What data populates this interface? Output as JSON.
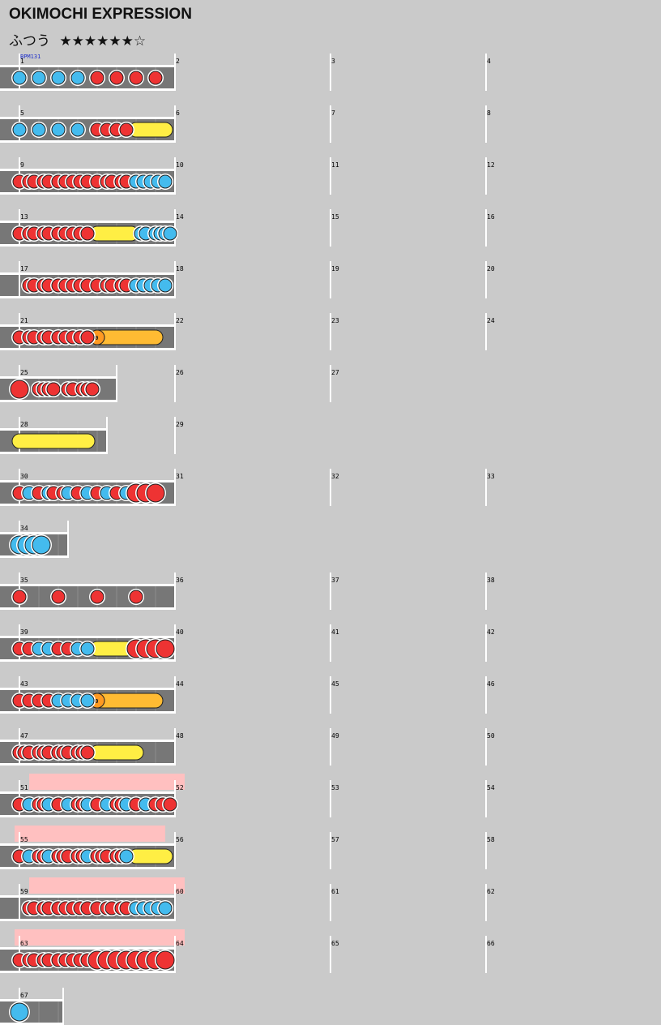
{
  "title": "OKIMOCHI EXPRESSION",
  "difficulty": "ふつう",
  "stars": "★★★★★★☆",
  "bpm_label": "BPM131",
  "balloon_label": "10",
  "colors": {
    "don": "#ee3333",
    "ka": "#44bbee",
    "roll": "#ffee44",
    "balloon": "#ffbb33",
    "gogo": "#ffc0c0",
    "lane": "#777777"
  },
  "rows": [
    {
      "m": [
        1,
        2,
        3,
        4
      ],
      "len": 4,
      "notes": [
        [
          0,
          "k"
        ],
        [
          0.5,
          "k"
        ],
        [
          1,
          "k"
        ],
        [
          1.5,
          "k"
        ],
        [
          2,
          "d"
        ],
        [
          2.5,
          "d"
        ],
        [
          3,
          "d"
        ],
        [
          3.5,
          "d"
        ]
      ]
    },
    {
      "m": [
        5,
        6,
        7,
        8
      ],
      "len": 4,
      "notes": [
        [
          0,
          "k"
        ],
        [
          0.5,
          "k"
        ],
        [
          1,
          "k"
        ],
        [
          1.5,
          "k"
        ],
        [
          2,
          "d"
        ],
        [
          2.25,
          "d"
        ],
        [
          2.5,
          "d"
        ],
        [
          2.75,
          "d"
        ]
      ],
      "rolls": [
        [
          3,
          3.75,
          "roll"
        ]
      ]
    },
    {
      "m": [
        9,
        10,
        11,
        12
      ],
      "len": 4,
      "notes": [
        [
          0,
          "d"
        ],
        [
          0.25,
          "d"
        ],
        [
          0.375,
          "d"
        ],
        [
          0.625,
          "d"
        ],
        [
          0.75,
          "d"
        ],
        [
          1,
          "d"
        ],
        [
          1.1875,
          "d"
        ],
        [
          1.375,
          "d"
        ],
        [
          1.5625,
          "d"
        ],
        [
          1.75,
          "d"
        ],
        [
          2,
          "d"
        ],
        [
          2.25,
          "d"
        ],
        [
          2.375,
          "d"
        ],
        [
          2.625,
          "d"
        ],
        [
          2.75,
          "d"
        ],
        [
          3,
          "k"
        ],
        [
          3.1875,
          "k"
        ],
        [
          3.375,
          "k"
        ],
        [
          3.5625,
          "k"
        ],
        [
          3.75,
          "k"
        ]
      ]
    },
    {
      "m": [
        13,
        14,
        15,
        16
      ],
      "len": 4,
      "notes": [
        [
          0,
          "d"
        ],
        [
          0.25,
          "d"
        ],
        [
          0.375,
          "d"
        ],
        [
          0.625,
          "d"
        ],
        [
          0.75,
          "d"
        ],
        [
          1,
          "d"
        ],
        [
          1.1875,
          "d"
        ],
        [
          1.375,
          "d"
        ],
        [
          1.5625,
          "d"
        ],
        [
          1.75,
          "d"
        ],
        [
          3.125,
          "k"
        ],
        [
          3.25,
          "k"
        ],
        [
          3.5,
          "k"
        ],
        [
          3.625,
          "k"
        ],
        [
          3.75,
          "k"
        ],
        [
          3.875,
          "k"
        ]
      ],
      "rolls": [
        [
          2,
          2.875,
          "roll"
        ]
      ]
    },
    {
      "m": [
        17,
        18,
        19,
        20
      ],
      "len": 4,
      "notes": [
        [
          0.25,
          "d"
        ],
        [
          0.375,
          "d"
        ],
        [
          0.625,
          "d"
        ],
        [
          0.75,
          "d"
        ],
        [
          1,
          "d"
        ],
        [
          1.1875,
          "d"
        ],
        [
          1.375,
          "d"
        ],
        [
          1.5625,
          "d"
        ],
        [
          1.75,
          "d"
        ],
        [
          2,
          "d"
        ],
        [
          2.25,
          "d"
        ],
        [
          2.375,
          "d"
        ],
        [
          2.625,
          "d"
        ],
        [
          2.75,
          "d"
        ],
        [
          3,
          "k"
        ],
        [
          3.1875,
          "k"
        ],
        [
          3.375,
          "k"
        ],
        [
          3.5625,
          "k"
        ],
        [
          3.75,
          "k"
        ]
      ]
    },
    {
      "m": [
        21,
        22,
        23,
        24
      ],
      "len": 4,
      "notes": [
        [
          0,
          "d"
        ],
        [
          0.25,
          "d"
        ],
        [
          0.375,
          "d"
        ],
        [
          0.625,
          "d"
        ],
        [
          0.75,
          "d"
        ],
        [
          1,
          "d"
        ],
        [
          1.1875,
          "d"
        ],
        [
          1.375,
          "d"
        ],
        [
          1.5625,
          "d"
        ],
        [
          1.75,
          "d"
        ]
      ],
      "rolls": [
        [
          2,
          3.5,
          "balloon"
        ]
      ]
    },
    {
      "m": [
        25,
        26,
        27
      ],
      "len": 2.5,
      "notes": [
        [
          0,
          "D"
        ],
        [
          0.5,
          "d"
        ],
        [
          0.625,
          "d"
        ],
        [
          0.75,
          "d"
        ],
        [
          0.875,
          "d"
        ],
        [
          1.25,
          "d"
        ],
        [
          1.375,
          "d"
        ],
        [
          1.625,
          "d"
        ],
        [
          1.75,
          "d"
        ],
        [
          1.875,
          "d"
        ]
      ]
    },
    {
      "m": [
        28,
        29
      ],
      "len": 2.25,
      "notes": [],
      "rolls": [
        [
          0,
          1.75,
          "roll"
        ]
      ]
    },
    {
      "m": [
        30,
        31,
        32,
        33
      ],
      "len": 4,
      "notes": [
        [
          0,
          "d"
        ],
        [
          0.25,
          "k"
        ],
        [
          0.5,
          "d"
        ],
        [
          0.75,
          "k"
        ],
        [
          0.875,
          "d"
        ],
        [
          1.125,
          "d"
        ],
        [
          1.25,
          "k"
        ],
        [
          1.5,
          "d"
        ],
        [
          1.75,
          "k"
        ],
        [
          2,
          "d"
        ],
        [
          2.25,
          "k"
        ],
        [
          2.5,
          "d"
        ],
        [
          2.75,
          "k"
        ],
        [
          3,
          "D"
        ],
        [
          3.25,
          "D"
        ],
        [
          3.5,
          "D"
        ]
      ]
    },
    {
      "m": [
        34
      ],
      "len": 1.25,
      "notes": [
        [
          0,
          "K"
        ],
        [
          0.1875,
          "K"
        ],
        [
          0.375,
          "K"
        ],
        [
          0.5625,
          "K"
        ]
      ]
    },
    {
      "m": [
        35,
        36,
        37,
        38
      ],
      "len": 4,
      "notes": [
        [
          0,
          "d"
        ],
        [
          1,
          "d"
        ],
        [
          2,
          "d"
        ],
        [
          3,
          "d"
        ]
      ]
    },
    {
      "m": [
        39,
        40,
        41,
        42
      ],
      "len": 4,
      "notes": [
        [
          0,
          "d"
        ],
        [
          0.25,
          "d"
        ],
        [
          0.5,
          "k"
        ],
        [
          0.75,
          "k"
        ],
        [
          1,
          "d"
        ],
        [
          1.25,
          "d"
        ],
        [
          1.5,
          "k"
        ],
        [
          1.75,
          "k"
        ],
        [
          3,
          "D"
        ],
        [
          3.25,
          "D"
        ],
        [
          3.5,
          "D"
        ],
        [
          3.75,
          "D"
        ]
      ],
      "rolls": [
        [
          2,
          2.75,
          "roll"
        ]
      ]
    },
    {
      "m": [
        43,
        44,
        45,
        46
      ],
      "len": 4,
      "notes": [
        [
          0,
          "d"
        ],
        [
          0.25,
          "d"
        ],
        [
          0.5,
          "d"
        ],
        [
          0.75,
          "d"
        ],
        [
          1,
          "k"
        ],
        [
          1.25,
          "k"
        ],
        [
          1.5,
          "k"
        ],
        [
          1.75,
          "k"
        ]
      ],
      "rolls": [
        [
          2,
          3.5,
          "balloon"
        ]
      ]
    },
    {
      "m": [
        47,
        48,
        49,
        50
      ],
      "len": 4,
      "notes": [
        [
          0,
          "d"
        ],
        [
          0.125,
          "d"
        ],
        [
          0.25,
          "d"
        ],
        [
          0.5,
          "d"
        ],
        [
          0.625,
          "d"
        ],
        [
          0.75,
          "d"
        ],
        [
          1,
          "d"
        ],
        [
          1.125,
          "d"
        ],
        [
          1.25,
          "d"
        ],
        [
          1.5,
          "d"
        ],
        [
          1.625,
          "d"
        ],
        [
          1.75,
          "d"
        ]
      ],
      "rolls": [
        [
          2,
          3,
          "roll"
        ]
      ]
    },
    {
      "m": [
        51,
        52,
        53,
        54
      ],
      "len": 4,
      "gogo": [
        0.25,
        4.25
      ],
      "notes": [
        [
          0,
          "d"
        ],
        [
          0.25,
          "k"
        ],
        [
          0.5,
          "d"
        ],
        [
          0.625,
          "d"
        ],
        [
          0.75,
          "k"
        ],
        [
          1,
          "d"
        ],
        [
          1.25,
          "k"
        ],
        [
          1.5,
          "d"
        ],
        [
          1.625,
          "d"
        ],
        [
          1.75,
          "k"
        ],
        [
          2,
          "d"
        ],
        [
          2.25,
          "k"
        ],
        [
          2.5,
          "d"
        ],
        [
          2.625,
          "d"
        ],
        [
          2.75,
          "k"
        ],
        [
          3,
          "d"
        ],
        [
          3.25,
          "k"
        ],
        [
          3.5,
          "d"
        ],
        [
          3.6875,
          "d"
        ],
        [
          3.875,
          "d"
        ]
      ]
    },
    {
      "m": [
        55,
        56,
        57,
        58
      ],
      "len": 4,
      "gogo": [
        -0.125,
        3.75
      ],
      "notes": [
        [
          0,
          "d"
        ],
        [
          0.25,
          "k"
        ],
        [
          0.5,
          "d"
        ],
        [
          0.625,
          "d"
        ],
        [
          0.75,
          "k"
        ],
        [
          1,
          "d"
        ],
        [
          1.125,
          "d"
        ],
        [
          1.25,
          "d"
        ],
        [
          1.5,
          "d"
        ],
        [
          1.625,
          "d"
        ],
        [
          1.75,
          "k"
        ],
        [
          2,
          "d"
        ],
        [
          2.125,
          "d"
        ],
        [
          2.25,
          "d"
        ],
        [
          2.5,
          "d"
        ],
        [
          2.625,
          "d"
        ],
        [
          2.75,
          "k"
        ]
      ],
      "rolls": [
        [
          3,
          3.75,
          "roll"
        ]
      ]
    },
    {
      "m": [
        59,
        60,
        61,
        62
      ],
      "len": 4,
      "gogo": [
        0.25,
        4.25
      ],
      "notes": [
        [
          0.25,
          "d"
        ],
        [
          0.375,
          "d"
        ],
        [
          0.625,
          "d"
        ],
        [
          0.75,
          "d"
        ],
        [
          1,
          "d"
        ],
        [
          1.1875,
          "d"
        ],
        [
          1.375,
          "d"
        ],
        [
          1.5625,
          "d"
        ],
        [
          1.75,
          "d"
        ],
        [
          2,
          "d"
        ],
        [
          2.25,
          "d"
        ],
        [
          2.375,
          "d"
        ],
        [
          2.625,
          "d"
        ],
        [
          2.75,
          "d"
        ],
        [
          3,
          "k"
        ],
        [
          3.1875,
          "k"
        ],
        [
          3.375,
          "k"
        ],
        [
          3.5625,
          "k"
        ],
        [
          3.75,
          "k"
        ]
      ]
    },
    {
      "m": [
        63,
        64,
        65,
        66
      ],
      "len": 4,
      "gogo": [
        -0.125,
        4.25
      ],
      "notes": [
        [
          0,
          "d"
        ],
        [
          0.25,
          "d"
        ],
        [
          0.375,
          "d"
        ],
        [
          0.625,
          "d"
        ],
        [
          0.75,
          "d"
        ],
        [
          1,
          "d"
        ],
        [
          1.1875,
          "d"
        ],
        [
          1.375,
          "d"
        ],
        [
          1.5625,
          "d"
        ],
        [
          1.75,
          "d"
        ],
        [
          2,
          "D"
        ],
        [
          2.25,
          "D"
        ],
        [
          2.5,
          "D"
        ],
        [
          2.75,
          "D"
        ],
        [
          3,
          "D"
        ],
        [
          3.25,
          "D"
        ],
        [
          3.5,
          "D"
        ],
        [
          3.75,
          "D"
        ]
      ]
    },
    {
      "m": [
        67
      ],
      "len": 1.125,
      "notes": [
        [
          0,
          "K"
        ]
      ]
    }
  ]
}
